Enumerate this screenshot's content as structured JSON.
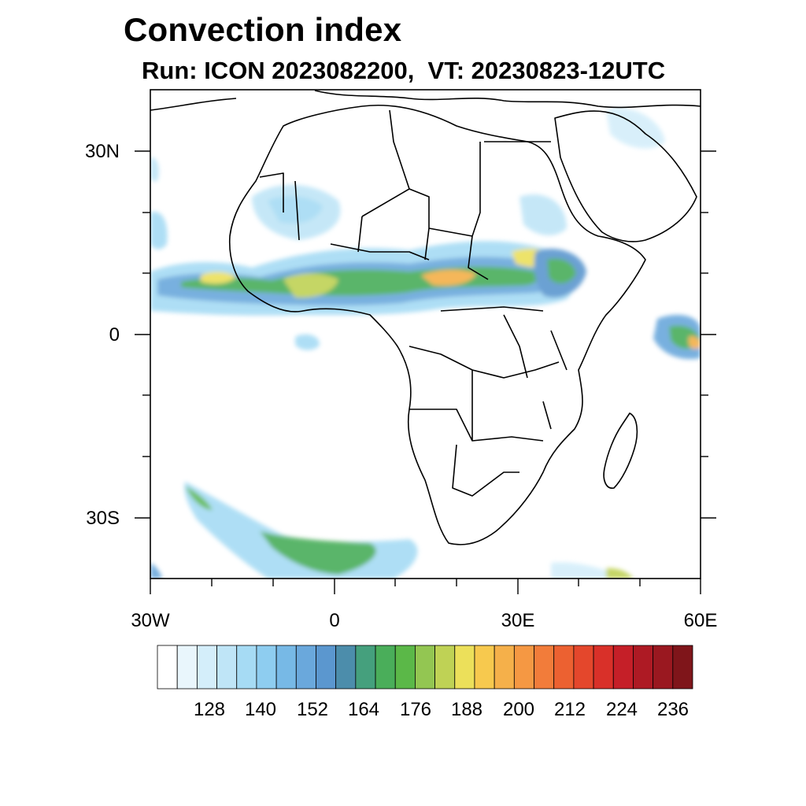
{
  "title": "Convection index",
  "subtitle": "Run: ICON 2023082200,  VT: 20230823-12UTC",
  "map": {
    "region": "Africa",
    "lon_range": [
      -30,
      60
    ],
    "lat_range": [
      -40,
      40
    ],
    "y_ticks": [
      "30N",
      "0",
      "30S"
    ],
    "x_ticks": [
      "30W",
      "0",
      "30E",
      "60E"
    ]
  },
  "colorbar": {
    "labels": [
      "128",
      "140",
      "152",
      "164",
      "176",
      "188",
      "200",
      "212",
      "224",
      "236"
    ],
    "colors": [
      "#ffffff",
      "#e9f6fc",
      "#d4eefa",
      "#bfe5f7",
      "#a6dbf4",
      "#8ecdf0",
      "#77b9e6",
      "#6aa8dc",
      "#5b97cf",
      "#4c8dab",
      "#45a07d",
      "#4aae5a",
      "#5bb848",
      "#93c652",
      "#bfd255",
      "#ece05a",
      "#f7c94e",
      "#f5b04a",
      "#f59843",
      "#f27c3a",
      "#ec6131",
      "#e4472c",
      "#d93029",
      "#c51f28",
      "#ae1a24",
      "#9a1820",
      "#7f151a"
    ]
  }
}
